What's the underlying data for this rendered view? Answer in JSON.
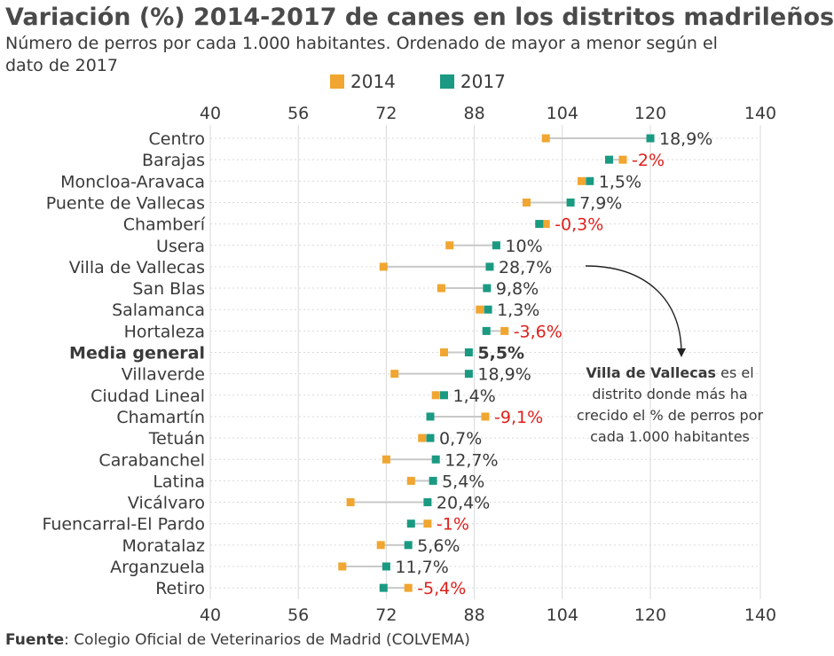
{
  "title": "Variación (%) 2014-2017 de canes en los distritos madrileños",
  "subtitle": "Número de perros por cada 1.000 habitantes. Ordenado de mayor a menor según el dato de 2017",
  "source": {
    "label": "Fuente",
    "text": ": Colegio Oficial de Veterinarios de Madrid (COLVEMA)"
  },
  "annotation": {
    "bold": "Villa de Vallecas",
    "rest": " es el distrito donde más ha crecido el % de perros por cada 1.000 habitantes"
  },
  "colors": {
    "y2014": "#f0a630",
    "y2017": "#1a9a82",
    "negative": "#e0201c",
    "connector": "#c8c8c8",
    "grid": "#d9d9d9",
    "text": "#3a3a3a"
  },
  "chart_data": {
    "type": "dot-plot",
    "xlim": [
      40,
      140
    ],
    "xticks": [
      "40",
      "56",
      "72",
      "88",
      "104",
      "120",
      "140"
    ],
    "grid": true,
    "legend_position": "top",
    "series": [
      {
        "name": "2014",
        "color": "#f0a630"
      },
      {
        "name": "2017",
        "color": "#1a9a82"
      }
    ],
    "rows": [
      {
        "name": "Centro",
        "v2014": 101.0,
        "v2017": 120.0,
        "change": "18,9%",
        "negative": false
      },
      {
        "name": "Barajas",
        "v2014": 115.0,
        "v2017": 112.5,
        "change": "-2%",
        "negative": true
      },
      {
        "name": "Moncloa-Aravaca",
        "v2014": 107.5,
        "v2017": 109.0,
        "change": "1,5%",
        "negative": false
      },
      {
        "name": "Puente de Vallecas",
        "v2014": 97.5,
        "v2017": 105.5,
        "change": "7,9%",
        "negative": false
      },
      {
        "name": "Chamberí",
        "v2014": 101.0,
        "v2017": 99.8,
        "change": "-0,3%",
        "negative": true
      },
      {
        "name": "Usera",
        "v2014": 83.5,
        "v2017": 92.0,
        "change": "10%",
        "negative": false
      },
      {
        "name": "Villa de Vallecas",
        "v2014": 71.5,
        "v2017": 90.8,
        "change": "28,7%",
        "negative": false
      },
      {
        "name": "San Blas",
        "v2014": 82.0,
        "v2017": 90.3,
        "change": "9,8%",
        "negative": false
      },
      {
        "name": "Salamanca",
        "v2014": 89.0,
        "v2017": 90.5,
        "change": "1,3%",
        "negative": false
      },
      {
        "name": "Hortaleza",
        "v2014": 93.5,
        "v2017": 90.2,
        "change": "-3,6%",
        "negative": true
      },
      {
        "name": "Media general",
        "v2014": 82.5,
        "v2017": 87.0,
        "change": "5,5%",
        "negative": false,
        "bold": true
      },
      {
        "name": "Villaverde",
        "v2014": 73.5,
        "v2017": 87.0,
        "change": "18,9%",
        "negative": false
      },
      {
        "name": "Ciudad Lineal",
        "v2014": 81.0,
        "v2017": 82.5,
        "change": "1,4%",
        "negative": false
      },
      {
        "name": "Chamartín",
        "v2014": 90.0,
        "v2017": 80.0,
        "change": "-9,1%",
        "negative": true
      },
      {
        "name": "Tetuán",
        "v2014": 78.5,
        "v2017": 80.0,
        "change": "0,7%",
        "negative": false
      },
      {
        "name": "Carabanchel",
        "v2014": 72.0,
        "v2017": 81.0,
        "change": "12,7%",
        "negative": false
      },
      {
        "name": "Latina",
        "v2014": 76.5,
        "v2017": 80.5,
        "change": "5,4%",
        "negative": false
      },
      {
        "name": "Vicálvaro",
        "v2014": 65.5,
        "v2017": 79.5,
        "change": "20,4%",
        "negative": false
      },
      {
        "name": "Fuencarral-El Pardo",
        "v2014": 79.5,
        "v2017": 76.5,
        "change": "-1%",
        "negative": true
      },
      {
        "name": "Moratalaz",
        "v2014": 71.0,
        "v2017": 76.0,
        "change": "5,6%",
        "negative": false
      },
      {
        "name": "Arganzuela",
        "v2014": 64.0,
        "v2017": 72.0,
        "change": "11,7%",
        "negative": false
      },
      {
        "name": "Retiro",
        "v2014": 76.0,
        "v2017": 71.5,
        "change": "-5,4%",
        "negative": true
      }
    ]
  }
}
